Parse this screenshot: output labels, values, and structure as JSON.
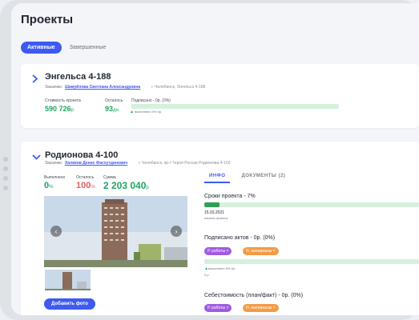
{
  "page": {
    "title": "Проекты"
  },
  "tabs": {
    "active": "Активные",
    "finished": "Завершенные"
  },
  "projects": [
    {
      "title": "Энгельса 4-188",
      "customer_label": "Заказчик:",
      "customer_name": "Шамуйлова Светлана Александровна",
      "address": "г. Челябинск, Энгельса 4-188",
      "cost_label": "Стоимость проекта",
      "cost_value": "590 726",
      "cost_unit": "р",
      "remaining_label": "Осталось",
      "remaining_value": "93",
      "remaining_unit": "дн.",
      "signed_label": "Подписано - 0р. (0%)",
      "signed_fraction": 0,
      "done_note": "выполнено 0% 0р."
    },
    {
      "title": "Родионова 4-100",
      "customer_label": "Заказчик:",
      "customer_name": "Халиков Денис Фасхутдинович",
      "address": "г. Челябинск, пр-т Героя России Родионова 4-100",
      "done_label": "Выполнено",
      "done_value": "0",
      "done_unit": "%",
      "left_label": "Осталось",
      "left_value": "100",
      "left_unit": "%",
      "sum_label": "Сумма",
      "sum_value": "2 203 040",
      "sum_unit": "р",
      "add_photo": "Добавить фото",
      "info_tab": "ИНФО",
      "docs_tab": "ДОКУМЕНТЫ (2)",
      "deadline_title": "Сроки проекта - 7%",
      "deadline_fraction": 0.07,
      "deadline_date": "15.03.2021",
      "deadline_caption": "начало проекта",
      "acts_title": "Подписано актов - 0р. (0%)",
      "acts_fraction": 0,
      "chip_works": "Р. работы ×",
      "chip_materials": "Н. материалы ×",
      "acts_done_note": "выполнено 0% 0р.",
      "acts_value": "0 р.",
      "cost_title": "Себестоимость (план/факт) - 0р. (0%)"
    }
  ],
  "colors": {
    "accent": "#3d5af1",
    "green": "#1fa463",
    "red": "#e85b5b",
    "bar_bg": "#d6f0dd",
    "bar_fill": "#2f9e57"
  },
  "icons": {
    "expand": "chevron-right-icon",
    "collapse": "chevron-down-icon",
    "prev": "arrow-left-icon",
    "next": "arrow-right-icon"
  }
}
